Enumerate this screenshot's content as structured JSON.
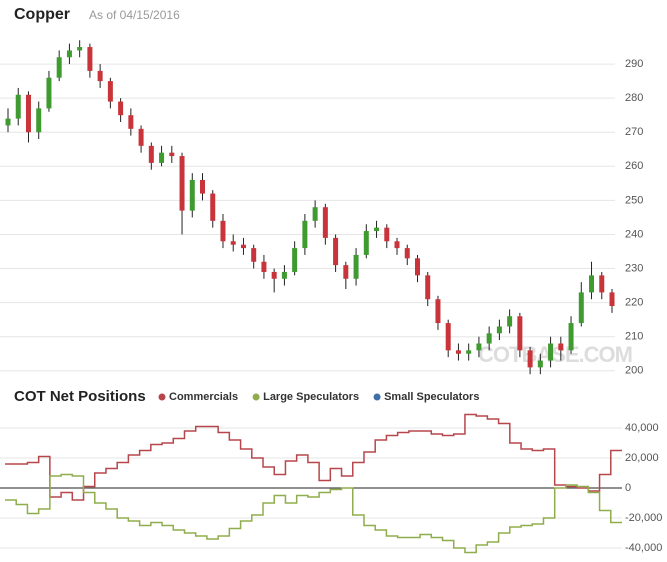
{
  "chart_data": [
    {
      "type": "candlestick",
      "title": "Copper",
      "subtitle": "As of 04/15/2016",
      "watermark": "COTBASE.COM",
      "open": [
        272,
        274,
        281,
        270,
        277,
        286,
        292,
        294,
        295,
        288,
        285,
        279,
        275,
        271,
        266,
        261,
        264,
        263,
        247,
        256,
        252,
        244,
        238,
        237,
        236,
        232,
        229,
        227,
        229,
        236,
        244,
        248,
        239,
        231,
        227,
        234,
        241,
        242,
        238,
        236,
        233,
        228,
        221,
        214,
        206,
        205,
        206,
        208,
        211,
        213,
        216,
        206,
        201,
        203,
        208,
        206,
        214,
        223,
        228,
        223
      ],
      "high": [
        277,
        283,
        282,
        279,
        288,
        294,
        296,
        297,
        296,
        290,
        286,
        280,
        277,
        272,
        267,
        266,
        266,
        264,
        258,
        258,
        253,
        246,
        240,
        239,
        237,
        234,
        230,
        231,
        238,
        246,
        250,
        249,
        240,
        232,
        236,
        243,
        244,
        243,
        239,
        237,
        234,
        229,
        222,
        215,
        208,
        208,
        210,
        213,
        215,
        218,
        217,
        207,
        205,
        210,
        210,
        216,
        226,
        232,
        229,
        224
      ],
      "low": [
        270,
        272,
        267,
        268,
        276,
        285,
        290,
        292,
        286,
        283,
        277,
        273,
        269,
        264,
        259,
        260,
        261,
        240,
        245,
        250,
        242,
        236,
        235,
        234,
        230,
        227,
        223,
        225,
        228,
        234,
        242,
        237,
        229,
        224,
        225,
        233,
        239,
        236,
        234,
        231,
        226,
        219,
        212,
        204,
        203,
        203,
        204,
        206,
        209,
        211,
        204,
        199,
        199,
        201,
        203,
        205,
        213,
        221,
        221,
        217
      ],
      "close": [
        274,
        281,
        270,
        277,
        286,
        292,
        294,
        295,
        288,
        285,
        279,
        275,
        271,
        266,
        261,
        264,
        263,
        247,
        256,
        252,
        244,
        238,
        237,
        236,
        232,
        229,
        227,
        229,
        236,
        244,
        248,
        239,
        231,
        227,
        234,
        241,
        242,
        238,
        236,
        233,
        228,
        221,
        214,
        206,
        205,
        206,
        208,
        211,
        213,
        216,
        206,
        201,
        203,
        208,
        206,
        214,
        223,
        228,
        223,
        219
      ],
      "up_color": "#3f9a2f",
      "down_color": "#c8343a",
      "ylim": [
        197,
        300
      ],
      "yticks": [
        200,
        210,
        220,
        230,
        240,
        250,
        260,
        270,
        280,
        290
      ],
      "grid": true
    },
    {
      "type": "step-line",
      "title": "COT Net Positions",
      "series": [
        {
          "name": "Commercials",
          "color": "#b5474b",
          "values": [
            16000,
            16000,
            17000,
            21000,
            -6000,
            -3000,
            -8000,
            1000,
            10000,
            13000,
            17000,
            22000,
            25000,
            29000,
            30000,
            33000,
            38000,
            41000,
            41000,
            37000,
            32000,
            26000,
            20000,
            14000,
            9000,
            18000,
            22000,
            17000,
            5000,
            13000,
            8000,
            17000,
            24000,
            32000,
            35000,
            37000,
            38000,
            38000,
            36000,
            35000,
            36000,
            49000,
            48000,
            46000,
            43000,
            30000,
            26000,
            25000,
            26000,
            2000,
            1000,
            0,
            -2000,
            9000,
            25000
          ]
        },
        {
          "name": "Large Speculators",
          "color": "#8fad4c",
          "values": [
            -8000,
            -11000,
            -17000,
            -14000,
            8000,
            9000,
            8000,
            -3000,
            -10000,
            -14000,
            -20000,
            -22000,
            -25000,
            -23000,
            -25000,
            -28000,
            -30000,
            -32000,
            -34000,
            -32000,
            -27000,
            -22000,
            -18000,
            -10000,
            -5000,
            -10000,
            -5000,
            -6000,
            -3000,
            -1000,
            0,
            -18000,
            -25000,
            -28000,
            -32000,
            -33000,
            -33000,
            -31000,
            -33000,
            -35000,
            -40000,
            -43000,
            -38000,
            -36000,
            -30000,
            -26000,
            -25000,
            -24000,
            -20000,
            0,
            2000,
            1000,
            -3000,
            -15000,
            -23000
          ]
        },
        {
          "name": "Small Speculators",
          "color": "#3f6fa8",
          "values": [
            null,
            null,
            null,
            null,
            null,
            null,
            null,
            null,
            null,
            null,
            null,
            null,
            null,
            null,
            null,
            null,
            null,
            null,
            null,
            null,
            null,
            null,
            null,
            null,
            null,
            null,
            null,
            null,
            null,
            null,
            null,
            null,
            null,
            null,
            null,
            null,
            null,
            null,
            null,
            null,
            null,
            null,
            null,
            null,
            null,
            null,
            null,
            null,
            null,
            null,
            null,
            null,
            null,
            null,
            null
          ]
        }
      ],
      "ylim": [
        -45000,
        50000
      ],
      "yticks": [
        {
          "value": 40000,
          "label": "40,000"
        },
        {
          "value": 20000,
          "label": "20,000"
        },
        0,
        {
          "value": -20000,
          "label": "-20,000"
        },
        {
          "value": -40000,
          "label": "-40,000"
        }
      ],
      "grid": true
    }
  ]
}
